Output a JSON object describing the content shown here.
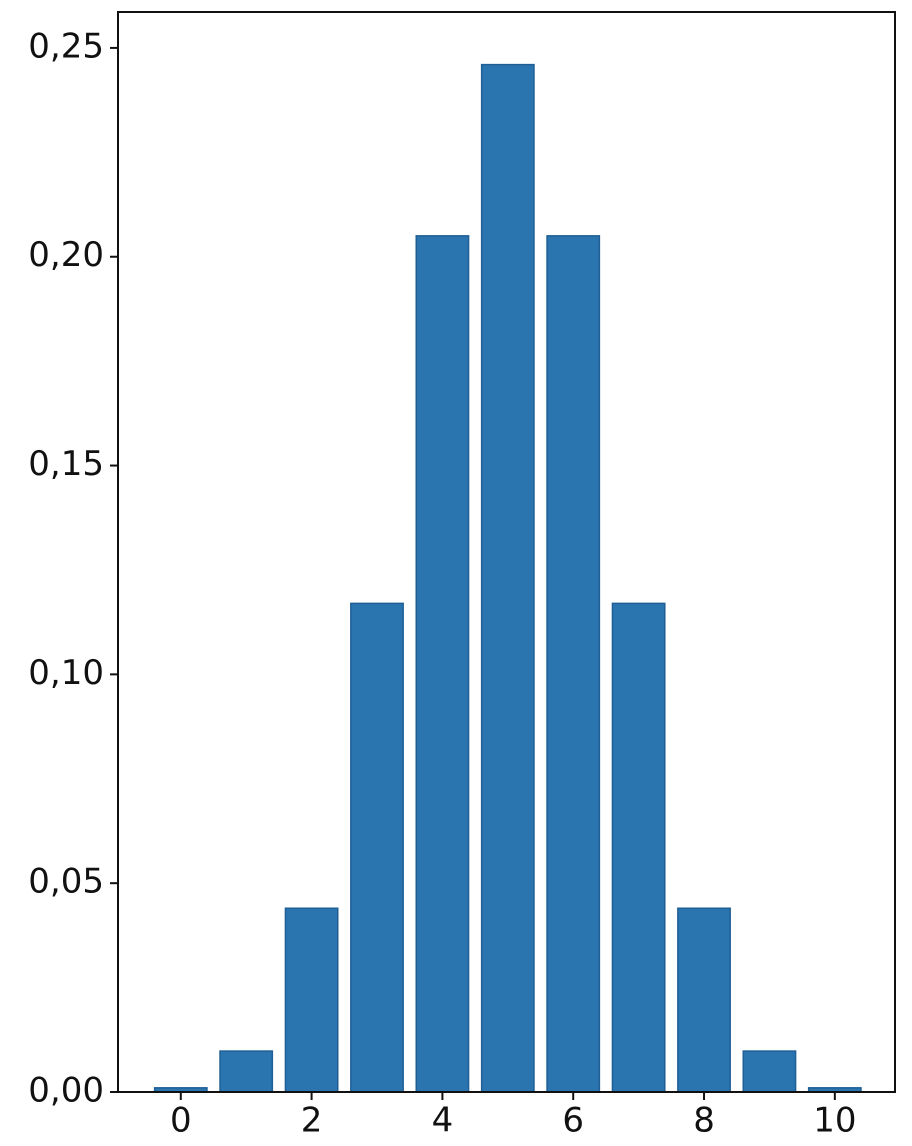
{
  "chart_data": {
    "type": "bar",
    "x": [
      0,
      1,
      2,
      3,
      4,
      5,
      6,
      7,
      8,
      9,
      10
    ],
    "values": [
      0.001,
      0.0098,
      0.044,
      0.117,
      0.205,
      0.246,
      0.205,
      0.117,
      0.044,
      0.0098,
      0.001
    ],
    "color": "#2a74b0",
    "xlim": [
      -0.96,
      10.92
    ],
    "xticks": [
      0,
      2,
      4,
      6,
      8,
      10
    ],
    "ylim": [
      0,
      0.2586
    ],
    "yticks": [
      {
        "value": 0,
        "label": "0,00"
      },
      {
        "value": 0.05,
        "label": "0,05"
      },
      {
        "value": 0.1,
        "label": "0,10"
      },
      {
        "value": 0.15,
        "label": "0,15"
      },
      {
        "value": 0.2,
        "label": "0,20"
      },
      {
        "value": 0.25,
        "label": "0,25"
      }
    ]
  }
}
